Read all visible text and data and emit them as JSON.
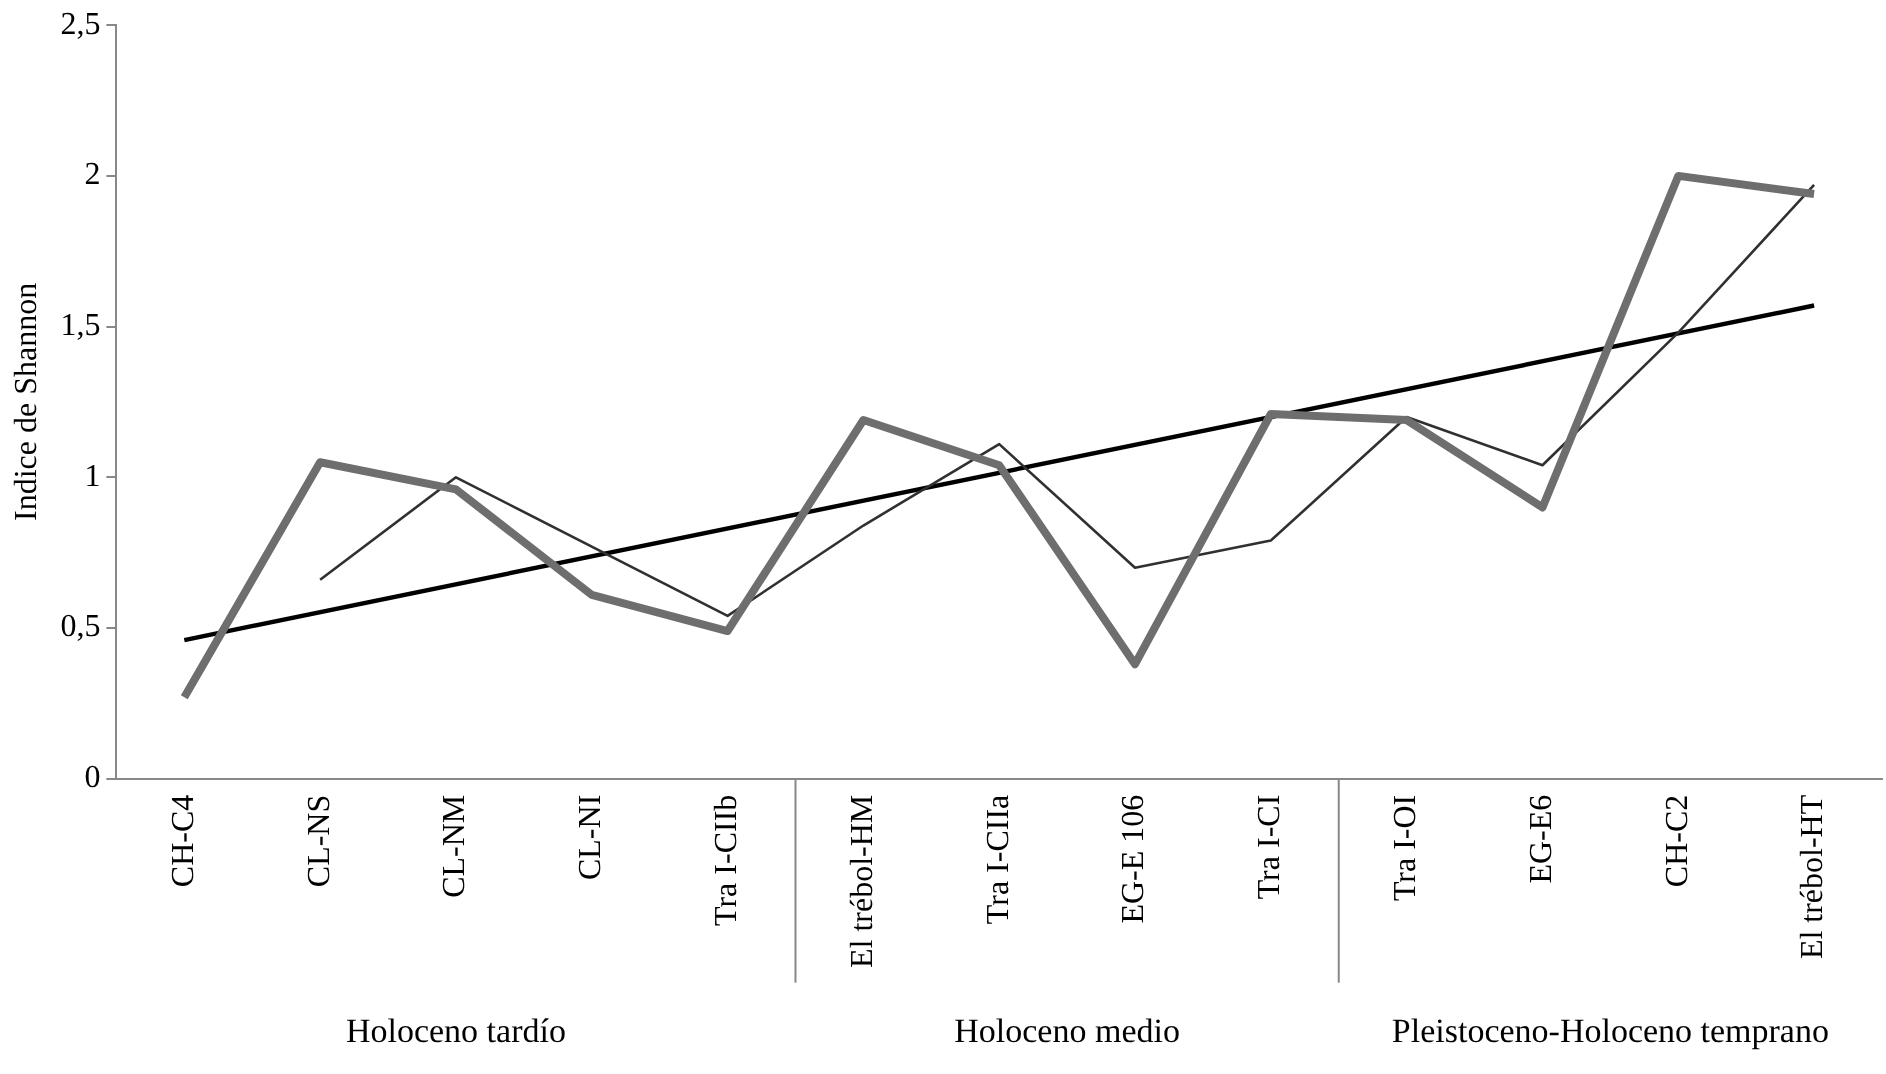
{
  "chart_data": {
    "type": "line",
    "ylabel": "Indice de Shannon",
    "categories": [
      "CH-C4",
      "CL-NS",
      "CL-NM",
      "CL-NI",
      "Tra I-CIIb",
      "El trébol-HM",
      "Tra I-CIIa",
      "EG-E 106",
      "Tra I-CI",
      "Tra I-OI",
      "EG-E6",
      "CH-C2",
      "El trébol-HT"
    ],
    "series": [
      {
        "color": "#6e6e6e",
        "values": [
          0.27,
          1.05,
          0.96,
          0.61,
          0.49,
          1.19,
          1.04,
          0.38,
          1.21,
          1.19,
          0.9,
          2.0,
          1.94
        ]
      },
      {
        "color": "#303030",
        "values": [
          null,
          0.66,
          1.0,
          0.77,
          0.54,
          0.84,
          1.11,
          0.7,
          0.79,
          1.2,
          1.04,
          1.48,
          1.97
        ]
      },
      {
        "color": "#000000",
        "values": [
          0.46,
          null,
          null,
          null,
          null,
          null,
          null,
          null,
          null,
          null,
          null,
          null,
          1.57
        ]
      }
    ],
    "ylim": [
      0,
      2.5
    ],
    "yticks": [
      0,
      {
        "value": 0.5,
        "label": "0,5"
      },
      1,
      {
        "value": 1.5,
        "label": "1,5"
      },
      2,
      {
        "value": 2.5,
        "label": "2,5"
      }
    ],
    "grid": false,
    "legend": false,
    "marker": "none",
    "line_style": "solid",
    "annotations": [
      "Holoceno tardío",
      "Holoceno medio",
      "Pleistoceno-Holoceno temprano"
    ]
  }
}
